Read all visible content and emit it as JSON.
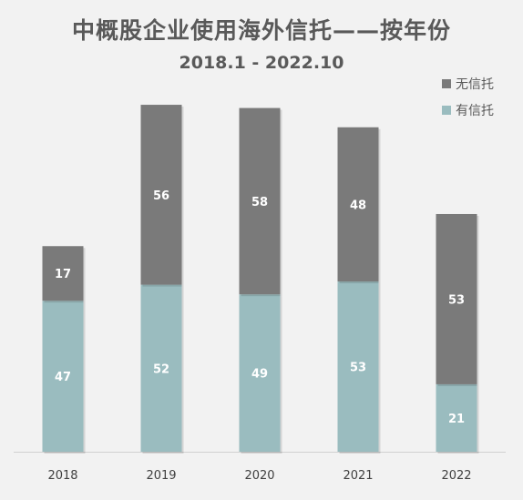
{
  "chart_data": {
    "type": "bar",
    "stacked": true,
    "title": "中概股企业使用海外信托——按年份",
    "subtitle": "2018.1 - 2022.10",
    "categories": [
      "2018",
      "2019",
      "2020",
      "2021",
      "2022"
    ],
    "series": [
      {
        "name": "有信托",
        "values": [
          47,
          52,
          49,
          53,
          21
        ],
        "color": "#9abcbf"
      },
      {
        "name": "无信托",
        "values": [
          17,
          56,
          58,
          48,
          53
        ],
        "color": "#7a7a7a"
      }
    ],
    "legend_order": [
      "无信托",
      "有信托"
    ],
    "legend_position": "top-right",
    "ylim": [
      0,
      110
    ],
    "grid": false
  }
}
